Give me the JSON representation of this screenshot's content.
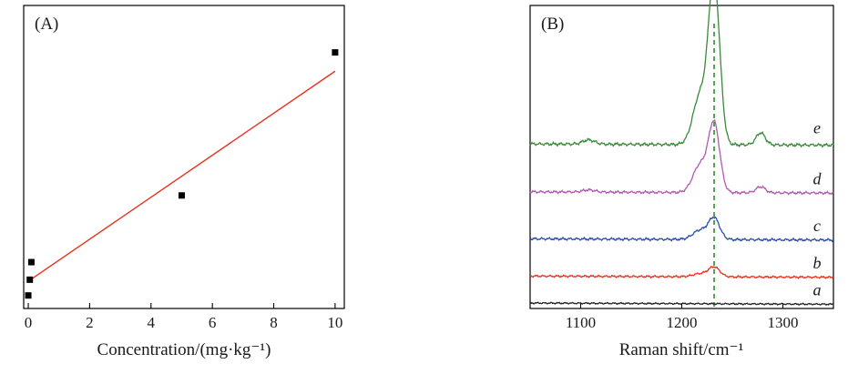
{
  "chart_data": [
    {
      "type": "scatter",
      "panel_label": "(A)",
      "xlabel": "Concentration/(mg·kg⁻¹)",
      "ylabel": "",
      "xlim": [
        -0.15,
        10.3
      ],
      "ylim": [
        0,
        1
      ],
      "x_ticks": [
        0,
        2,
        4,
        6,
        8,
        10
      ],
      "x_tick_labels": [
        "0",
        "2",
        "4",
        "6",
        "8",
        "10"
      ],
      "show_y_ticks": false,
      "grid": false,
      "legend": "none",
      "points_color": "#000000",
      "fit_color": "#e8321e",
      "series": [
        {
          "values": [
            {
              "x": 0.0,
              "y": 0.043
            },
            {
              "x": 0.05,
              "y": 0.095
            },
            {
              "x": 0.1,
              "y": 0.153
            },
            {
              "x": 5.0,
              "y": 0.373
            },
            {
              "x": 10.0,
              "y": 0.845
            }
          ]
        }
      ],
      "fit_line": {
        "x": [
          0.0,
          10.0
        ],
        "y": [
          0.09,
          0.783
        ]
      }
    },
    {
      "type": "line",
      "panel_label": "(B)",
      "xlabel": "Raman shift/cm⁻¹",
      "ylabel": "",
      "xlim": [
        1050,
        1350
      ],
      "ylim": [
        0,
        1
      ],
      "x_ticks": [
        1100,
        1200,
        1300
      ],
      "x_tick_labels": [
        "1100",
        "1200",
        "1300"
      ],
      "show_y_ticks": false,
      "grid": false,
      "legend": "curve labels at right",
      "reference_line": {
        "x": 1232,
        "color": "#2e8b2e",
        "style": "dashed"
      },
      "series": [
        {
          "name": "a",
          "color": "#222222",
          "baseline": 0.018,
          "peak": 0.0,
          "shoulder": 0.0,
          "side": 0.0,
          "noise": 0.003
        },
        {
          "name": "b",
          "color": "#e8321e",
          "baseline": 0.107,
          "peak": 0.032,
          "shoulder": 0.01,
          "side": 0.0,
          "noise": 0.004
        },
        {
          "name": "c",
          "color": "#2a4fa8",
          "baseline": 0.23,
          "peak": 0.07,
          "shoulder": 0.03,
          "side": 0.0,
          "noise": 0.005
        },
        {
          "name": "d",
          "color": "#b05ab0",
          "baseline": 0.385,
          "peak": 0.225,
          "shoulder": 0.09,
          "side": 0.02,
          "noise": 0.005
        },
        {
          "name": "e",
          "color": "#3a8a3a",
          "baseline": 0.543,
          "peak": 0.54,
          "shoulder": 0.16,
          "side": 0.04,
          "noise": 0.006
        }
      ]
    }
  ]
}
